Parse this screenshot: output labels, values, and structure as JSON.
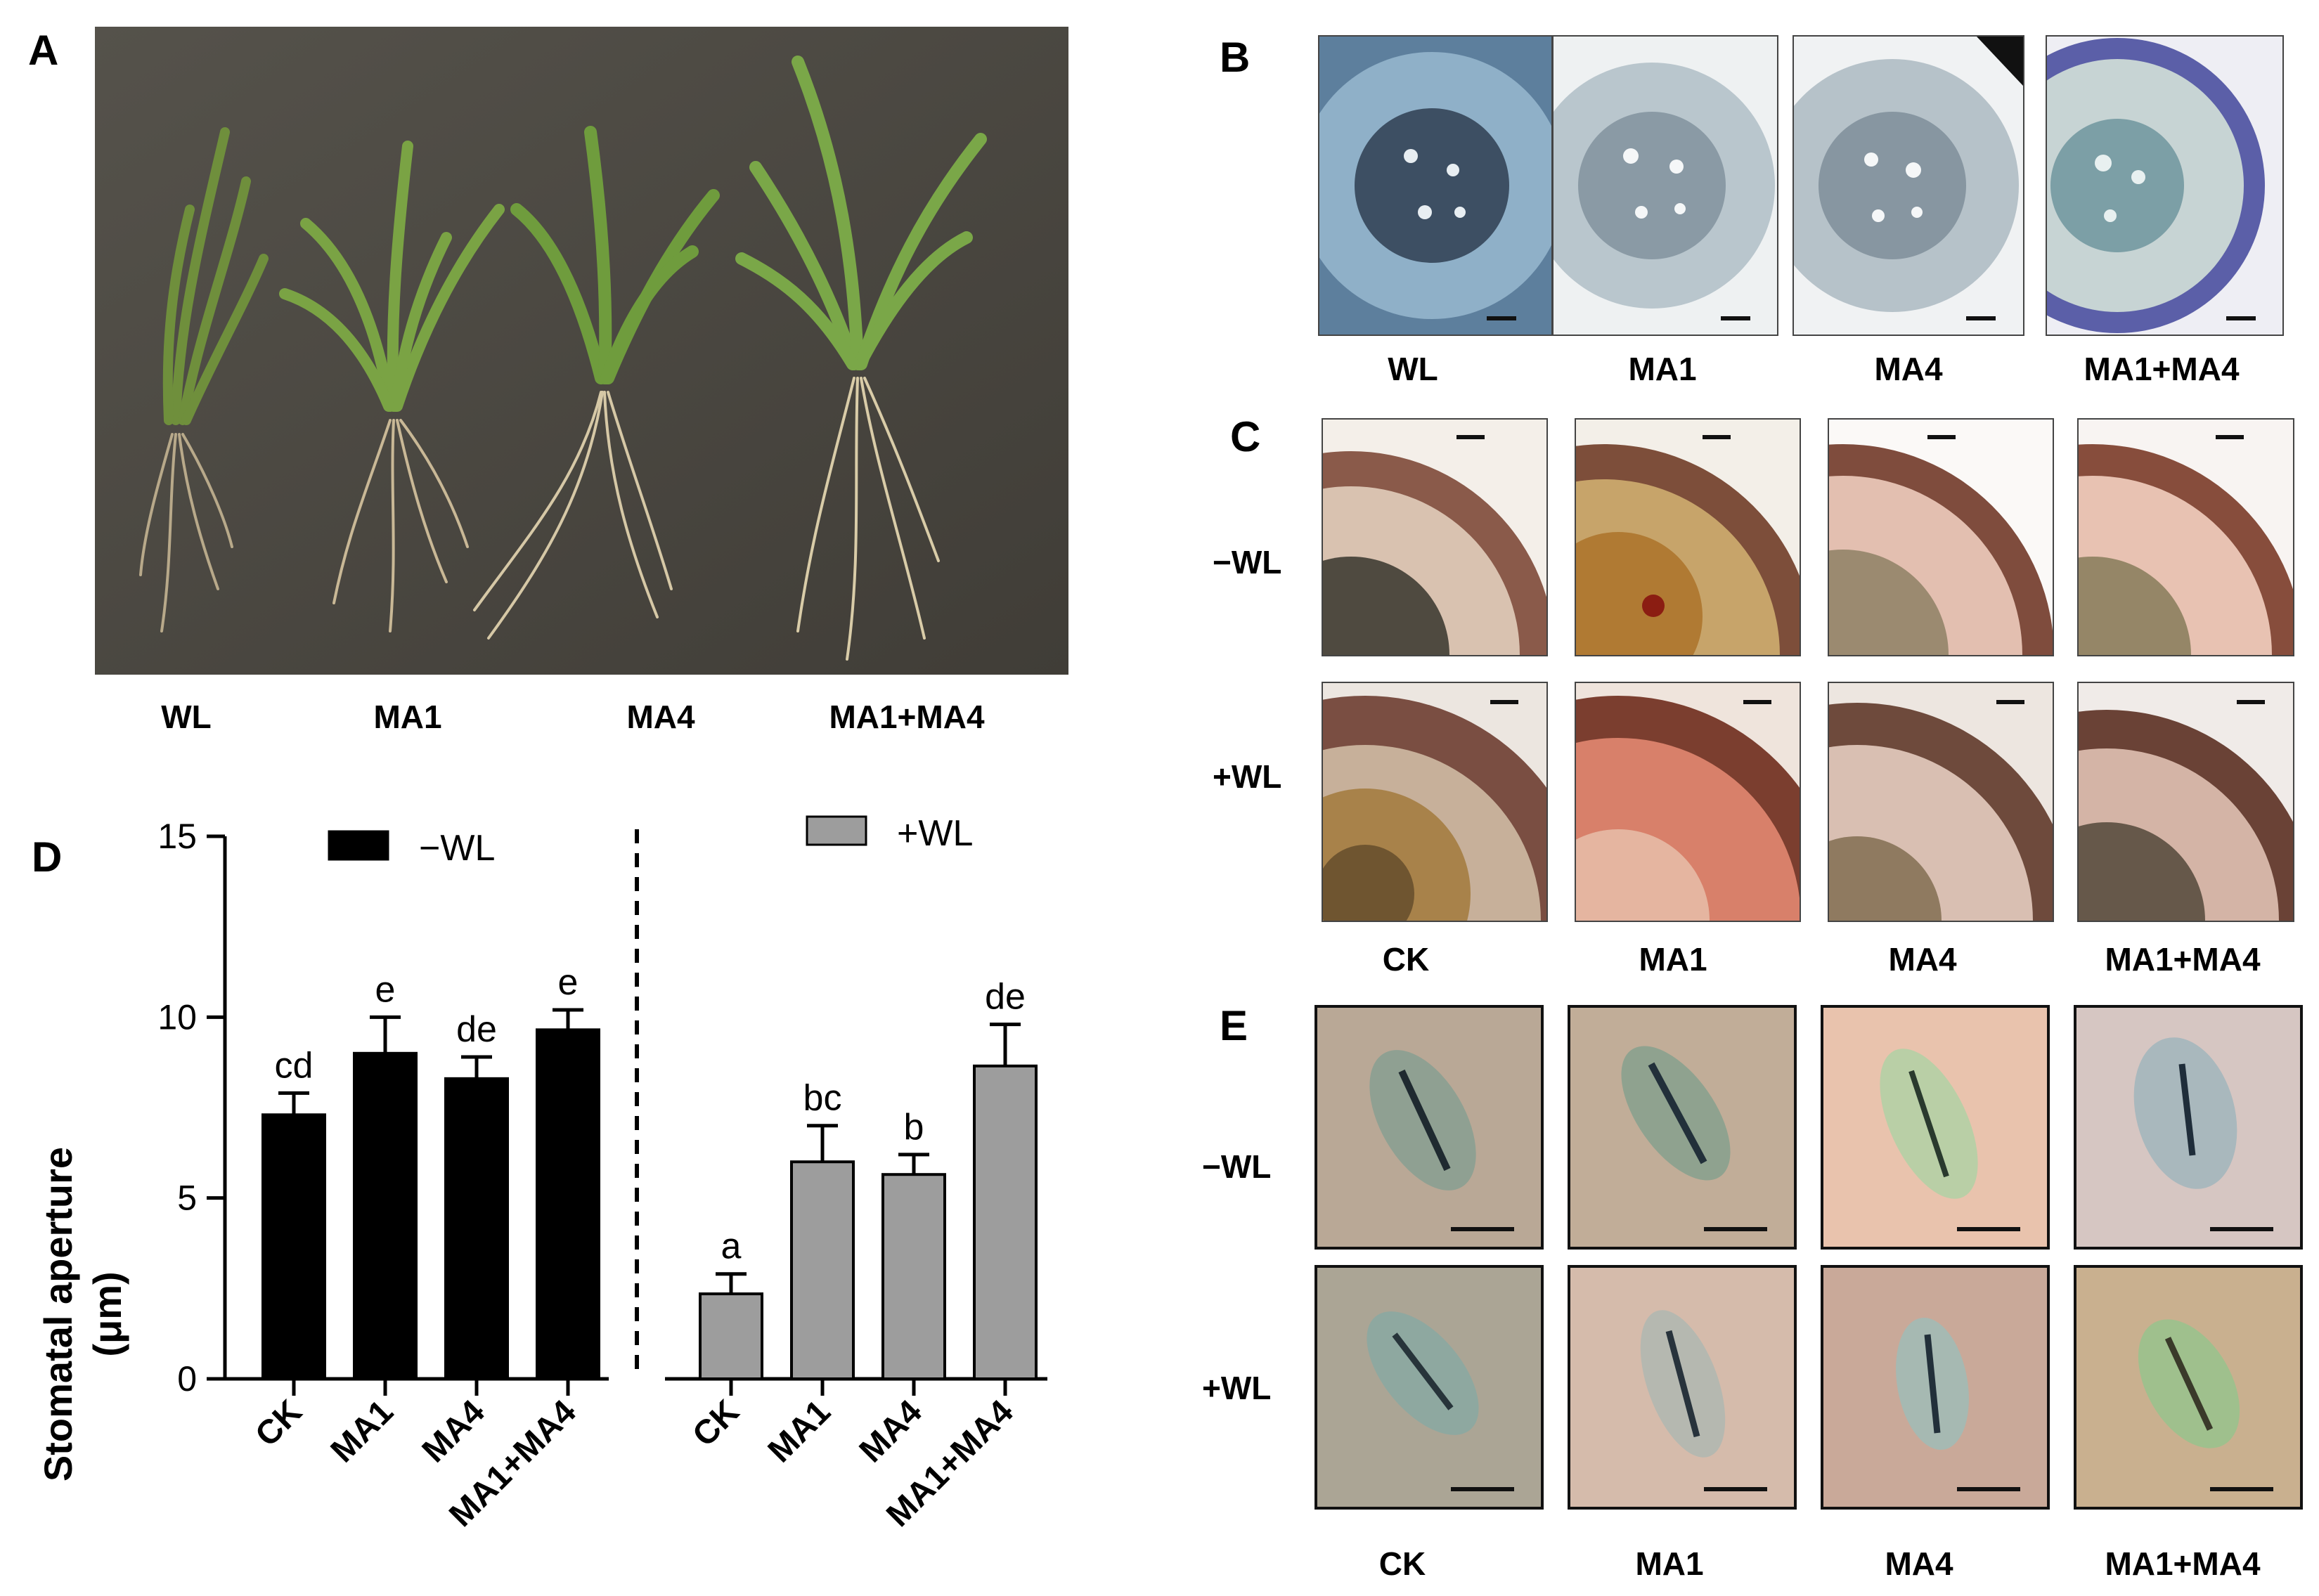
{
  "panels": {
    "A": {
      "letter": "A",
      "labels": [
        "WL",
        "MA1",
        "MA4",
        "MA1+MA4"
      ]
    },
    "B": {
      "letter": "B",
      "labels": [
        "WL",
        "MA1",
        "MA4",
        "MA1+MA4"
      ]
    },
    "C": {
      "letter": "C",
      "rows": [
        "−WL",
        "+WL"
      ],
      "labels": [
        "CK",
        "MA1",
        "MA4",
        "MA1+MA4"
      ]
    },
    "D": {
      "letter": "D"
    },
    "E": {
      "letter": "E",
      "rows": [
        "−WL",
        "+WL"
      ],
      "labels": [
        "CK",
        "MA1",
        "MA4",
        "MA1+MA4"
      ]
    }
  },
  "chart_data": {
    "type": "bar",
    "ylabel_line1": "Stomatal aperture",
    "ylabel_line2": "(μm)",
    "ylim": [
      0,
      15
    ],
    "yticks": [
      0,
      5,
      10,
      15
    ],
    "categories": [
      "CK",
      "MA1",
      "MA4",
      "MA1+MA4"
    ],
    "series": [
      {
        "name": "−WL",
        "color": "#000000",
        "values": [
          7.3,
          9.0,
          8.3,
          9.65
        ],
        "errors": [
          0.6,
          1.0,
          0.6,
          0.55
        ],
        "letters": [
          "cd",
          "e",
          "de",
          "e"
        ]
      },
      {
        "name": "+WL",
        "color": "#9d9d9d",
        "values": [
          2.35,
          6.0,
          5.65,
          8.65
        ],
        "errors": [
          0.55,
          1.0,
          0.55,
          1.15
        ],
        "letters": [
          "a",
          "bc",
          "b",
          "de"
        ]
      }
    ]
  }
}
